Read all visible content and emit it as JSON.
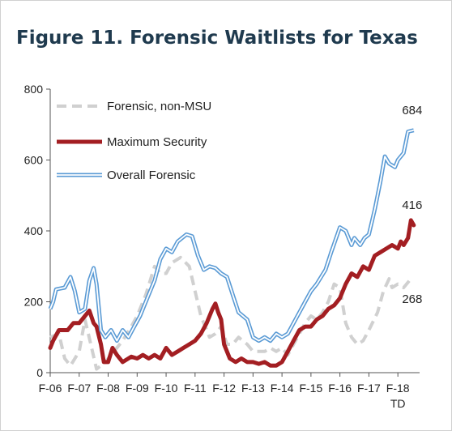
{
  "chart_data": {
    "type": "line",
    "title": "Figure 11. Forensic Waitlists for Texas",
    "xlabel": "",
    "ylabel": "",
    "ylim": [
      0,
      800
    ],
    "yticks": [
      "0",
      "200",
      "400",
      "600",
      "800"
    ],
    "xtick_labels": [
      "F-06",
      "F-07",
      "F-08",
      "F-09",
      "F-10",
      "F-11",
      "F-12",
      "F-13",
      "F-14",
      "F-15",
      "F-16",
      "F-17",
      "F-18"
    ],
    "xtick_sublabel": "TD",
    "legend_position": "top-left",
    "grid": false,
    "series": [
      {
        "name": "Forensic, non-MSU",
        "color": "#d0d0d0",
        "style": "dashed",
        "points": [
          [
            2006.0,
            100
          ],
          [
            2006.3,
            110
          ],
          [
            2006.5,
            40
          ],
          [
            2006.7,
            20
          ],
          [
            2007.0,
            60
          ],
          [
            2007.2,
            150
          ],
          [
            2007.4,
            80
          ],
          [
            2007.6,
            10
          ],
          [
            2007.9,
            30
          ],
          [
            2008.2,
            60
          ],
          [
            2008.5,
            90
          ],
          [
            2008.8,
            130
          ],
          [
            2009.0,
            160
          ],
          [
            2009.3,
            220
          ],
          [
            2009.6,
            300
          ],
          [
            2009.8,
            280
          ],
          [
            2010.0,
            280
          ],
          [
            2010.2,
            310
          ],
          [
            2010.5,
            325
          ],
          [
            2010.8,
            300
          ],
          [
            2011.0,
            230
          ],
          [
            2011.2,
            160
          ],
          [
            2011.5,
            100
          ],
          [
            2011.7,
            110
          ],
          [
            2011.9,
            130
          ],
          [
            2012.1,
            80
          ],
          [
            2012.3,
            80
          ],
          [
            2012.5,
            100
          ],
          [
            2012.8,
            80
          ],
          [
            2013.0,
            60
          ],
          [
            2013.2,
            60
          ],
          [
            2013.4,
            60
          ],
          [
            2013.6,
            70
          ],
          [
            2013.8,
            60
          ],
          [
            2014.0,
            70
          ],
          [
            2014.2,
            50
          ],
          [
            2014.4,
            80
          ],
          [
            2014.6,
            110
          ],
          [
            2014.8,
            140
          ],
          [
            2015.0,
            160
          ],
          [
            2015.2,
            150
          ],
          [
            2015.4,
            170
          ],
          [
            2015.6,
            200
          ],
          [
            2015.8,
            250
          ],
          [
            2016.0,
            240
          ],
          [
            2016.2,
            140
          ],
          [
            2016.4,
            100
          ],
          [
            2016.6,
            80
          ],
          [
            2016.8,
            90
          ],
          [
            2017.0,
            120
          ],
          [
            2017.3,
            170
          ],
          [
            2017.5,
            230
          ],
          [
            2017.7,
            265
          ],
          [
            2017.8,
            240
          ],
          [
            2018.0,
            250
          ],
          [
            2018.2,
            240
          ],
          [
            2018.4,
            260
          ],
          [
            2018.55,
            268
          ]
        ]
      },
      {
        "name": "Maximum Security",
        "color": "#a31e22",
        "style": "thick",
        "points": [
          [
            2006.0,
            70
          ],
          [
            2006.1,
            90
          ],
          [
            2006.3,
            120
          ],
          [
            2006.6,
            120
          ],
          [
            2006.8,
            140
          ],
          [
            2007.0,
            140
          ],
          [
            2007.2,
            160
          ],
          [
            2007.35,
            175
          ],
          [
            2007.5,
            140
          ],
          [
            2007.6,
            130
          ],
          [
            2007.75,
            80
          ],
          [
            2007.85,
            30
          ],
          [
            2008.0,
            30
          ],
          [
            2008.15,
            70
          ],
          [
            2008.3,
            50
          ],
          [
            2008.5,
            30
          ],
          [
            2008.8,
            45
          ],
          [
            2009.0,
            40
          ],
          [
            2009.2,
            50
          ],
          [
            2009.4,
            40
          ],
          [
            2009.6,
            50
          ],
          [
            2009.8,
            40
          ],
          [
            2010.0,
            70
          ],
          [
            2010.2,
            50
          ],
          [
            2010.4,
            60
          ],
          [
            2010.6,
            70
          ],
          [
            2010.8,
            80
          ],
          [
            2011.0,
            90
          ],
          [
            2011.2,
            110
          ],
          [
            2011.4,
            140
          ],
          [
            2011.6,
            180
          ],
          [
            2011.7,
            195
          ],
          [
            2011.8,
            170
          ],
          [
            2011.9,
            150
          ],
          [
            2012.0,
            80
          ],
          [
            2012.2,
            40
          ],
          [
            2012.4,
            30
          ],
          [
            2012.6,
            40
          ],
          [
            2012.8,
            30
          ],
          [
            2013.0,
            30
          ],
          [
            2013.2,
            25
          ],
          [
            2013.4,
            30
          ],
          [
            2013.6,
            20
          ],
          [
            2013.8,
            20
          ],
          [
            2014.0,
            30
          ],
          [
            2014.2,
            60
          ],
          [
            2014.4,
            90
          ],
          [
            2014.6,
            120
          ],
          [
            2014.8,
            130
          ],
          [
            2015.0,
            130
          ],
          [
            2015.2,
            150
          ],
          [
            2015.4,
            160
          ],
          [
            2015.6,
            180
          ],
          [
            2015.8,
            190
          ],
          [
            2016.0,
            210
          ],
          [
            2016.2,
            250
          ],
          [
            2016.4,
            280
          ],
          [
            2016.6,
            270
          ],
          [
            2016.8,
            300
          ],
          [
            2017.0,
            290
          ],
          [
            2017.2,
            330
          ],
          [
            2017.4,
            340
          ],
          [
            2017.6,
            350
          ],
          [
            2017.8,
            360
          ],
          [
            2018.0,
            350
          ],
          [
            2018.1,
            370
          ],
          [
            2018.2,
            360
          ],
          [
            2018.35,
            380
          ],
          [
            2018.45,
            430
          ],
          [
            2018.55,
            416
          ]
        ]
      },
      {
        "name": "Overall Forensic",
        "color": "#5b9bd5",
        "style": "double",
        "points": [
          [
            2006.0,
            180
          ],
          [
            2006.1,
            200
          ],
          [
            2006.2,
            235
          ],
          [
            2006.5,
            240
          ],
          [
            2006.7,
            270
          ],
          [
            2006.85,
            230
          ],
          [
            2007.0,
            170
          ],
          [
            2007.2,
            180
          ],
          [
            2007.35,
            260
          ],
          [
            2007.5,
            295
          ],
          [
            2007.6,
            250
          ],
          [
            2007.75,
            120
          ],
          [
            2007.9,
            100
          ],
          [
            2008.1,
            120
          ],
          [
            2008.3,
            90
          ],
          [
            2008.5,
            120
          ],
          [
            2008.7,
            100
          ],
          [
            2008.9,
            130
          ],
          [
            2009.1,
            160
          ],
          [
            2009.3,
            200
          ],
          [
            2009.6,
            260
          ],
          [
            2009.8,
            320
          ],
          [
            2010.0,
            350
          ],
          [
            2010.2,
            340
          ],
          [
            2010.4,
            370
          ],
          [
            2010.7,
            390
          ],
          [
            2010.9,
            385
          ],
          [
            2011.1,
            330
          ],
          [
            2011.3,
            290
          ],
          [
            2011.5,
            300
          ],
          [
            2011.7,
            295
          ],
          [
            2011.9,
            280
          ],
          [
            2012.1,
            270
          ],
          [
            2012.3,
            220
          ],
          [
            2012.5,
            170
          ],
          [
            2012.8,
            150
          ],
          [
            2013.0,
            100
          ],
          [
            2013.2,
            90
          ],
          [
            2013.4,
            100
          ],
          [
            2013.6,
            90
          ],
          [
            2013.8,
            110
          ],
          [
            2014.0,
            100
          ],
          [
            2014.2,
            110
          ],
          [
            2014.4,
            140
          ],
          [
            2014.6,
            170
          ],
          [
            2014.8,
            200
          ],
          [
            2015.0,
            230
          ],
          [
            2015.2,
            250
          ],
          [
            2015.5,
            290
          ],
          [
            2015.7,
            340
          ],
          [
            2016.0,
            410
          ],
          [
            2016.2,
            400
          ],
          [
            2016.4,
            360
          ],
          [
            2016.5,
            380
          ],
          [
            2016.7,
            360
          ],
          [
            2016.85,
            380
          ],
          [
            2017.0,
            390
          ],
          [
            2017.2,
            460
          ],
          [
            2017.4,
            540
          ],
          [
            2017.55,
            610
          ],
          [
            2017.7,
            590
          ],
          [
            2017.9,
            580
          ],
          [
            2018.0,
            600
          ],
          [
            2018.2,
            620
          ],
          [
            2018.35,
            680
          ],
          [
            2018.55,
            684
          ]
        ]
      }
    ],
    "end_labels": [
      {
        "series": "Overall Forensic",
        "text": "684",
        "x": 2018.55,
        "y": 684
      },
      {
        "series": "Maximum Security",
        "text": "416",
        "x": 2018.55,
        "y": 416
      },
      {
        "series": "Forensic, non-MSU",
        "text": "268",
        "x": 2018.55,
        "y": 268
      }
    ]
  }
}
